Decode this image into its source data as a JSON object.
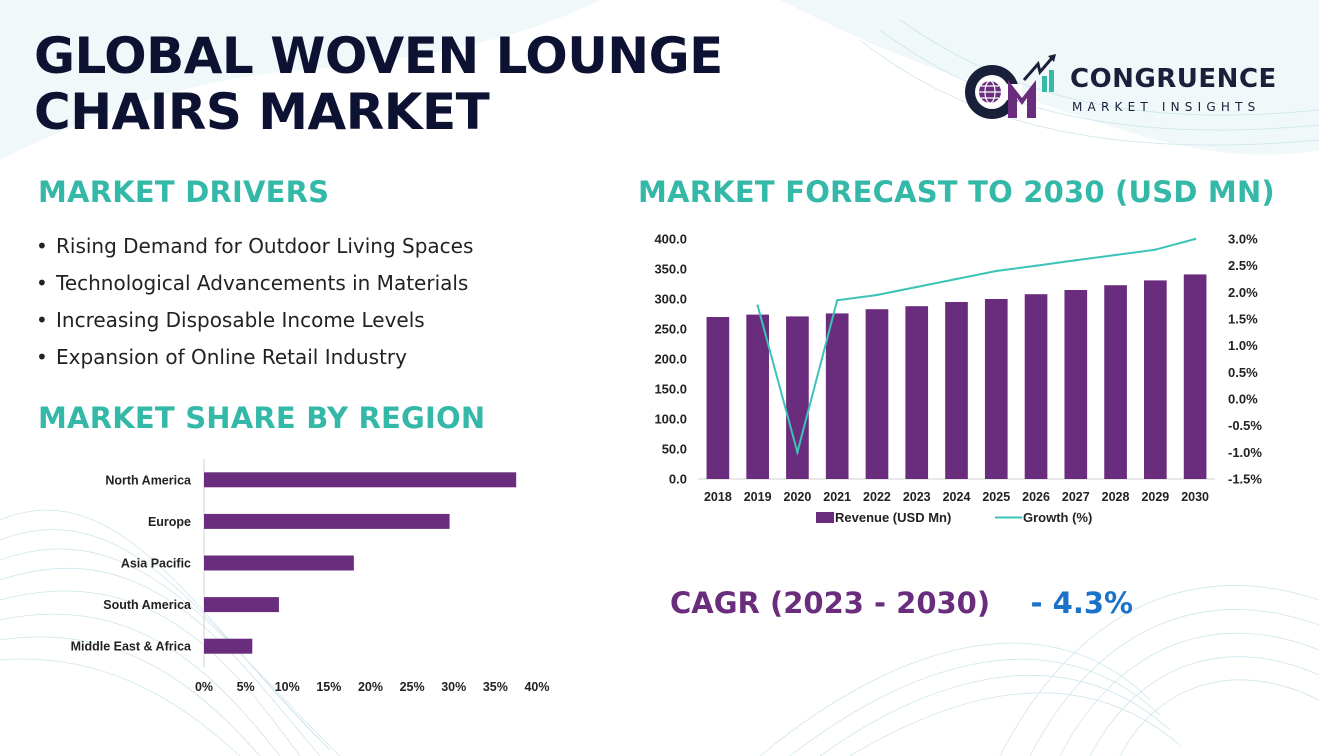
{
  "title": {
    "line1": "GLOBAL WOVEN LOUNGE",
    "line2": "CHAIRS MARKET"
  },
  "logo": {
    "name": "CONGRUENCE",
    "tagline": "MARKET INSIGHTS"
  },
  "drivers": {
    "heading": "MARKET DRIVERS",
    "bullet": "•",
    "items": [
      "Rising Demand for Outdoor Living Spaces",
      "Technological Advancements in Materials",
      "Increasing Disposable Income Levels",
      "Expansion of Online Retail Industry"
    ]
  },
  "region": {
    "heading": "MARKET SHARE BY REGION"
  },
  "forecast": {
    "heading": "MARKET FORECAST TO 2030 (USD MN)"
  },
  "cagr": {
    "label": "CAGR (2023 - 2030)",
    "value": "- 4.3%"
  },
  "colors": {
    "bar": "#6a2d7e",
    "line": "#3cc3b8",
    "heading": "#34b8a8",
    "title": "#0d1233",
    "cagr_value": "#1a73c9"
  },
  "chart_data": [
    {
      "type": "bar",
      "orientation": "horizontal",
      "categories": [
        "North America",
        "Europe",
        "Asia Pacific",
        "South America",
        "Middle East & Africa"
      ],
      "values": [
        37.5,
        29.5,
        18,
        9,
        5.8
      ],
      "xlim": [
        0,
        40
      ],
      "xticks": [
        "0%",
        "5%",
        "10%",
        "15%",
        "20%",
        "25%",
        "30%",
        "35%",
        "40%"
      ],
      "grid": false
    },
    {
      "type": "bar",
      "categories": [
        "2018",
        "2019",
        "2020",
        "2021",
        "2022",
        "2023",
        "2024",
        "2025",
        "2026",
        "2027",
        "2028",
        "2029",
        "2030"
      ],
      "series": [
        {
          "name": "Revenue (USD Mn)",
          "type": "bar",
          "axis": "left",
          "values": [
            270,
            274,
            271,
            276,
            283,
            288,
            295,
            300,
            308,
            315,
            323,
            331,
            341
          ]
        },
        {
          "name": "Growth (%)",
          "type": "line",
          "axis": "right",
          "values": [
            null,
            1.75,
            -1.0,
            1.85,
            1.95,
            2.1,
            2.25,
            2.4,
            2.5,
            2.6,
            2.7,
            2.8,
            3.0
          ]
        }
      ],
      "ylim": [
        0,
        400
      ],
      "yticks": [
        "0.0",
        "50.0",
        "100.0",
        "150.0",
        "200.0",
        "250.0",
        "300.0",
        "350.0",
        "400.0"
      ],
      "y2lim": [
        -1.5,
        3.0
      ],
      "y2ticks": [
        "-1.5%",
        "-1.0%",
        "-0.5%",
        "0.0%",
        "0.5%",
        "1.0%",
        "1.5%",
        "2.0%",
        "2.5%",
        "3.0%"
      ],
      "legend": "bottom",
      "grid": false
    }
  ]
}
